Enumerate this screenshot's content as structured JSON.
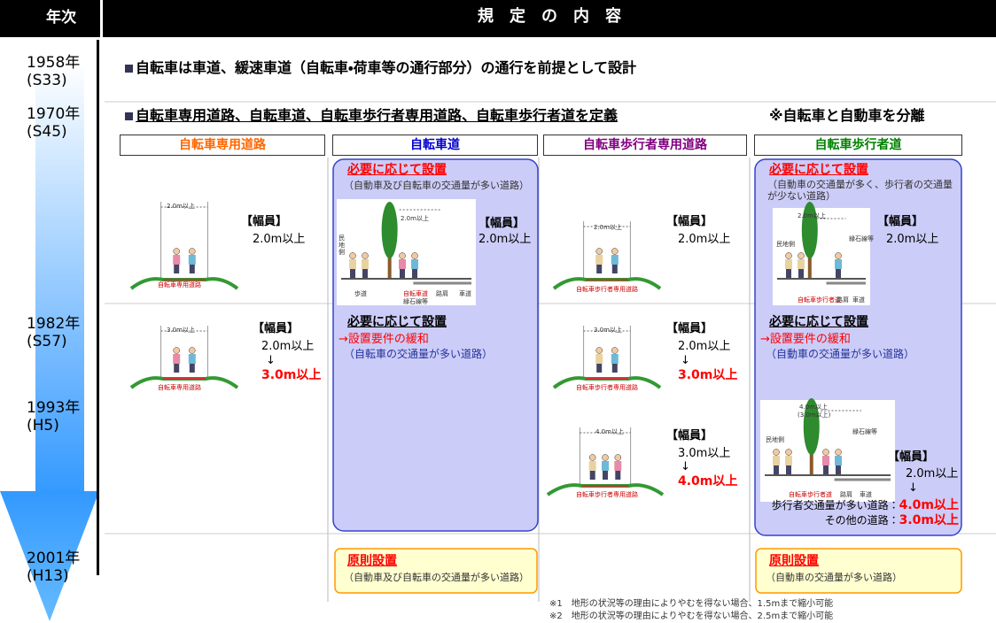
{
  "header": {
    "year_label": "年次",
    "content_label": "規　定　の　内　容"
  },
  "years": [
    {
      "year": "1958年",
      "era": "(S33)"
    },
    {
      "year": "1970年",
      "era": "(S45)"
    },
    {
      "year": "1982年",
      "era": "(S57)"
    },
    {
      "year": "1993年",
      "era": "(H5)"
    },
    {
      "year": "2001年",
      "era": "(H13)"
    }
  ],
  "row_1958": {
    "text": "自転車は車道、緩速車道（自転車・荷車等の通行部分）の通行を前提として設計"
  },
  "row_1970": {
    "text": "自転車専用道路、自転車道、自転車歩行者専用道路、自転車歩行者道を定義",
    "note": "※自転車と自動車を分離"
  },
  "columns": [
    {
      "heading": "自転車専用道路",
      "y1970": {
        "figure_width": "2.0m以上",
        "figure_caption": "自転車専用道路",
        "width_title": "【幅員】",
        "width": "2.0m以上"
      },
      "y1982": {
        "figure_width": "3.0m以上",
        "figure_caption": "自転車専用道路",
        "width_title": "【幅員】",
        "width_before": "2.0m以上",
        "arrow": "↓",
        "width_after": "3.0m以上"
      }
    },
    {
      "heading": "自転車道",
      "y1970": {
        "rule": "必要に応じて設置",
        "condition": "（自動車及び自転車の交通量が多い道路）",
        "figure_width": "2.0m以上",
        "figure_labels": [
          "民地側",
          "歩道",
          "自転車道",
          "縁石線等",
          "路肩",
          "車道"
        ],
        "width_title": "【幅員】",
        "width": "2.0m以上"
      },
      "y1982": {
        "rule": "必要に応じて設置",
        "change": "→設置要件の緩和",
        "condition": "（自転車の交通量が多い道路）"
      },
      "y2001": {
        "rule": "原則設置",
        "condition": "（自動車及び自転車の交通量が多い道路）"
      }
    },
    {
      "heading": "自転車歩行者専用道路",
      "y1970": {
        "figure_width": "2.0m以上",
        "figure_caption": "自転車歩行者専用道路",
        "width_title": "【幅員】",
        "width": "2.0m以上"
      },
      "y1982": {
        "figure_width": "3.0m以上",
        "figure_caption": "自転車歩行者専用道路",
        "width_title": "【幅員】",
        "width_before": "2.0m以上",
        "arrow": "↓",
        "width_after": "3.0m以上"
      },
      "y1993": {
        "figure_width": "4.0m以上",
        "figure_caption": "自転車歩行者専用道路",
        "width_title": "【幅員】",
        "width_before": "3.0m以上",
        "arrow": "↓",
        "width_after": "4.0m以上"
      }
    },
    {
      "heading": "自転車歩行者道",
      "y1970": {
        "rule": "必要に応じて設置",
        "condition": "（自動車の交通量が多く、歩行者の交通量が少ない道路）",
        "figure_width": "2.0m以上",
        "figure_labels": [
          "民地側",
          "縁石線等",
          "自転車歩行者道",
          "路肩",
          "車道"
        ],
        "width_title": "【幅員】",
        "width": "2.0m以上"
      },
      "y1982": {
        "rule": "必要に応じて設置",
        "change": "→設置要件の緩和",
        "condition": "（自動車の交通量が多い道路）"
      },
      "y1993": {
        "figure_width": "4.0m以上",
        "figure_width_alt": "(3.0m以上)",
        "figure_labels": [
          "民地側",
          "縁石線等",
          "自転車歩行者道",
          "路肩",
          "車道"
        ],
        "width_title": "【幅員】",
        "width_before": "2.0m以上",
        "arrow": "↓",
        "case_many": "歩行者交通量が多い道路：",
        "width_many": "4.0m以上",
        "case_other": "その他の道路：",
        "width_other": "3.0m以上"
      },
      "y2001": {
        "rule": "原則設置",
        "condition": "（自動車の交通量が多い道路）"
      }
    }
  ],
  "footnotes": [
    "※1　地形の状況等の理由によりやむを得ない場合、1.5mまで縮小可能",
    "※2　地形の状況等の理由によりやむを得ない場合、2.5mまで縮小可能"
  ]
}
